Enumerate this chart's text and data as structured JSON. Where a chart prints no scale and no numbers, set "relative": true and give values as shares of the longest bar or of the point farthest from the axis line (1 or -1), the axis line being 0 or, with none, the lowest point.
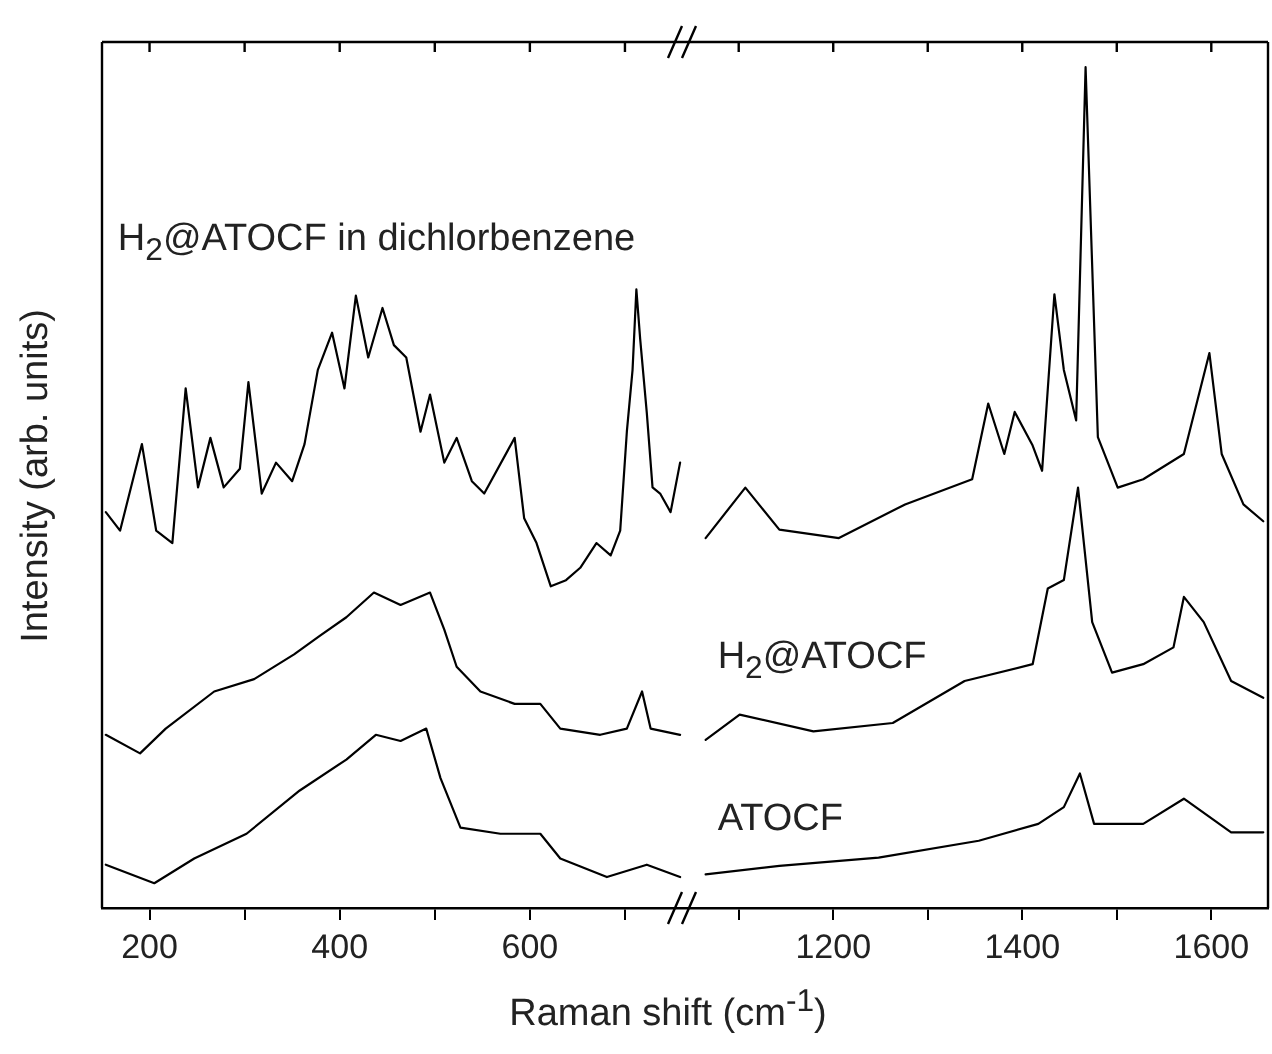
{
  "chart_data": [
    {
      "type": "line",
      "relative": true,
      "xlabel": "Raman shift (cm$^{-1}$)",
      "ylabel": "Intensity (arb. units)",
      "tick_labels": "x",
      "xlim": [
        150,
        760
      ],
      "xticks": [
        200,
        {
          "value": 300,
          "label": null
        },
        400,
        {
          "value": 500,
          "label": null
        },
        600,
        {
          "value": 700,
          "label": null
        }
      ],
      "series": [
        {
          "name": "H$_{2}$@ATOCF in dichlorbenzene",
          "color": "#000000",
          "x": [
            154,
            169,
            192,
            207,
            224,
            238,
            251,
            264,
            278,
            295,
            304,
            318,
            333,
            350,
            363,
            377,
            392,
            405,
            417,
            430,
            445,
            457,
            470,
            485,
            495,
            510,
            523,
            539,
            552,
            584,
            594,
            607,
            622,
            638,
            653,
            670,
            685,
            695,
            702,
            708,
            712,
            716,
            723,
            729,
            737,
            748,
            758
          ],
          "values": [
            0.64,
            0.61,
            0.75,
            0.61,
            0.59,
            0.84,
            0.68,
            0.76,
            0.68,
            0.71,
            0.85,
            0.67,
            0.72,
            0.69,
            0.75,
            0.87,
            0.93,
            0.84,
            0.99,
            0.89,
            0.97,
            0.91,
            0.89,
            0.77,
            0.83,
            0.72,
            0.76,
            0.69,
            0.67,
            0.76,
            0.63,
            0.59,
            0.52,
            0.53,
            0.55,
            0.59,
            0.57,
            0.61,
            0.77,
            0.87,
            1.0,
            0.92,
            0.8,
            0.68,
            0.67,
            0.64,
            0.72
          ]
        },
        {
          "color": "#000000",
          "x": [
            154,
            190,
            217,
            268,
            310,
            352,
            379,
            407,
            436,
            464,
            495,
            510,
            523,
            548,
            584,
            611,
            632,
            674,
            702,
            718,
            727,
            758
          ],
          "values": [
            0.28,
            0.25,
            0.29,
            0.35,
            0.37,
            0.41,
            0.44,
            0.47,
            0.51,
            0.49,
            0.51,
            0.45,
            0.39,
            0.35,
            0.33,
            0.33,
            0.29,
            0.28,
            0.29,
            0.35,
            0.29,
            0.28
          ]
        },
        {
          "color": "#000000",
          "x": [
            154,
            205,
            247,
            302,
            358,
            407,
            438,
            464,
            491,
            506,
            527,
            569,
            611,
            632,
            681,
            723,
            758
          ],
          "values": [
            0.07,
            0.04,
            0.08,
            0.12,
            0.19,
            0.24,
            0.28,
            0.27,
            0.29,
            0.21,
            0.13,
            0.12,
            0.12,
            0.08,
            0.05,
            0.07,
            0.05
          ]
        }
      ]
    },
    {
      "type": "line",
      "relative": true,
      "tick_labels": "x",
      "xlim": [
        1040,
        1660
      ],
      "xticks": [
        {
          "value": 1100,
          "label": null
        },
        1200,
        {
          "value": 1300,
          "label": null
        },
        1400,
        {
          "value": 1500,
          "label": null
        },
        1600
      ],
      "series": [
        {
          "color": "#000000",
          "x": [
            1065,
            1107,
            1143,
            1206,
            1276,
            1347,
            1364,
            1381,
            1392,
            1411,
            1421,
            1434,
            1444,
            1457,
            1467,
            1480,
            1501,
            1528,
            1571,
            1598,
            1611,
            1634,
            1655
          ],
          "values": [
            0.44,
            0.5,
            0.45,
            0.44,
            0.48,
            0.51,
            0.6,
            0.54,
            0.59,
            0.55,
            0.52,
            0.73,
            0.64,
            0.58,
            1.0,
            0.56,
            0.5,
            0.51,
            0.54,
            0.66,
            0.54,
            0.48,
            0.46
          ]
        },
        {
          "name": "H$_{2}$@ATOCF",
          "color": "#000000",
          "x": [
            1065,
            1101,
            1179,
            1263,
            1339,
            1411,
            1427,
            1444,
            1459,
            1474,
            1495,
            1528,
            1560,
            1571,
            1592,
            1621,
            1655
          ],
          "values": [
            0.2,
            0.23,
            0.21,
            0.22,
            0.27,
            0.29,
            0.38,
            0.39,
            0.5,
            0.34,
            0.28,
            0.29,
            0.31,
            0.37,
            0.34,
            0.27,
            0.25
          ]
        },
        {
          "name": "ATOCF",
          "color": "#000000",
          "x": [
            1065,
            1143,
            1248,
            1354,
            1417,
            1444,
            1461,
            1476,
            1528,
            1571,
            1621,
            1655
          ],
          "values": [
            0.04,
            0.05,
            0.06,
            0.08,
            0.1,
            0.12,
            0.16,
            0.1,
            0.1,
            0.13,
            0.09,
            0.09
          ]
        }
      ]
    }
  ]
}
